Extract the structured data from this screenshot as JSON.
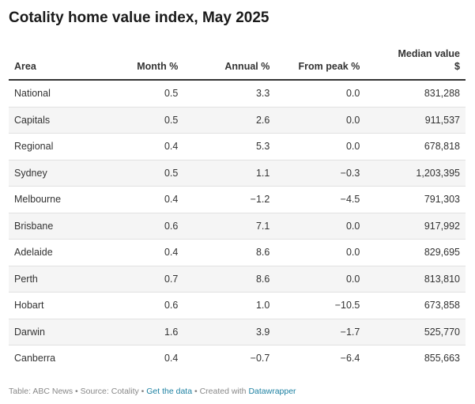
{
  "chart_data": {
    "type": "table",
    "title": "Cotality home value index, May 2025",
    "columns": [
      "Area",
      "Month %",
      "Annual %",
      "From peak %",
      "Median value",
      "$"
    ],
    "headers": {
      "area": "Area",
      "month": "Month %",
      "annual": "Annual %",
      "from_peak": "From peak %",
      "median_line1": "Median value",
      "median_line2": "$"
    },
    "rows": [
      {
        "area": "National",
        "month": "0.5",
        "annual": "3.3",
        "from_peak": "0.0",
        "median": "831,288"
      },
      {
        "area": "Capitals",
        "month": "0.5",
        "annual": "2.6",
        "from_peak": "0.0",
        "median": "911,537"
      },
      {
        "area": "Regional",
        "month": "0.4",
        "annual": "5.3",
        "from_peak": "0.0",
        "median": "678,818"
      },
      {
        "area": "Sydney",
        "month": "0.5",
        "annual": "1.1",
        "from_peak": "−0.3",
        "median": "1,203,395"
      },
      {
        "area": "Melbourne",
        "month": "0.4",
        "annual": "−1.2",
        "from_peak": "−4.5",
        "median": "791,303"
      },
      {
        "area": "Brisbane",
        "month": "0.6",
        "annual": "7.1",
        "from_peak": "0.0",
        "median": "917,992"
      },
      {
        "area": "Adelaide",
        "month": "0.4",
        "annual": "8.6",
        "from_peak": "0.0",
        "median": "829,695"
      },
      {
        "area": "Perth",
        "month": "0.7",
        "annual": "8.6",
        "from_peak": "0.0",
        "median": "813,810"
      },
      {
        "area": "Hobart",
        "month": "0.6",
        "annual": "1.0",
        "from_peak": "−10.5",
        "median": "673,858"
      },
      {
        "area": "Darwin",
        "month": "1.6",
        "annual": "3.9",
        "from_peak": "−1.7",
        "median": "525,770"
      },
      {
        "area": "Canberra",
        "month": "0.4",
        "annual": "−0.7",
        "from_peak": "−6.4",
        "median": "855,663"
      }
    ]
  },
  "footer": {
    "source_text": "Table: ABC News • Source: Cotality • ",
    "get_data_link": "Get the data",
    "separator": " • Created with ",
    "datawrapper_link": "Datawrapper"
  },
  "colors": {
    "text": "#333333",
    "title": "#1a1a1a",
    "row_shade": "#f5f5f5",
    "link": "#1d81a2",
    "footer_text": "#888888"
  }
}
